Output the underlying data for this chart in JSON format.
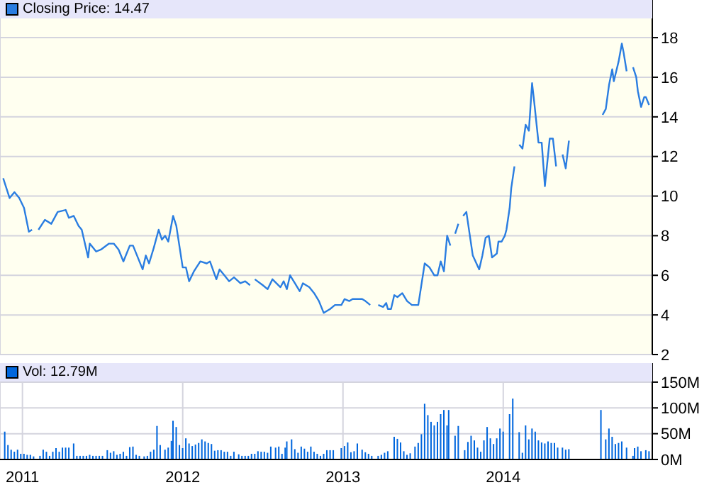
{
  "chart_data": [
    {
      "type": "line",
      "legend": "top left",
      "grid": true,
      "tick_labels": "y",
      "xlim": [
        2010.86,
        2014.93
      ],
      "xticks": [
        2011,
        2012,
        2013,
        2014
      ],
      "ylim": [
        2,
        19.9
      ],
      "yticks": [
        2,
        4,
        6,
        8,
        10,
        12,
        14,
        16,
        18
      ],
      "x": [
        2010.88,
        2010.92,
        2010.95,
        2010.98,
        2011.01,
        2011.04,
        2011.06,
        2011.08,
        2011.1,
        2011.14,
        2011.18,
        2011.22,
        2011.27,
        2011.29,
        2011.32,
        2011.35,
        2011.37,
        2011.41,
        2011.42,
        2011.46,
        2011.49,
        2011.54,
        2011.57,
        2011.6,
        2011.63,
        2011.67,
        2011.69,
        2011.72,
        2011.75,
        2011.77,
        2011.79,
        2011.82,
        2011.85,
        2011.87,
        2011.89,
        2011.91,
        2011.94,
        2011.96,
        2012.0,
        2012.02,
        2012.04,
        2012.07,
        2012.11,
        2012.15,
        2012.17,
        2012.21,
        2012.23,
        2012.26,
        2012.29,
        2012.32,
        2012.36,
        2012.39,
        2012.42,
        2012.43,
        2012.45,
        2012.5,
        2012.53,
        2012.56,
        2012.61,
        2012.63,
        2012.65,
        2012.67,
        2012.7,
        2012.73,
        2012.75,
        2012.79,
        2012.82,
        2012.85,
        2012.88,
        2012.92,
        2012.95,
        2012.99,
        2013.01,
        2013.04,
        2013.06,
        2013.12,
        2013.14,
        2013.17,
        2013.19,
        2013.22,
        2013.25,
        2013.27,
        2013.28,
        2013.3,
        2013.32,
        2013.34,
        2013.37,
        2013.4,
        2013.43,
        2013.47,
        2013.51,
        2013.54,
        2013.57,
        2013.59,
        2013.61,
        2013.63,
        2013.65,
        2013.67,
        2013.68,
        2013.7,
        2013.72,
        2013.73,
        2013.75,
        2013.77,
        2013.79,
        2013.81,
        2013.85,
        2013.87,
        2013.89,
        2013.91,
        2013.93,
        2013.96,
        2013.97,
        2013.99,
        2014.01,
        2014.02,
        2014.04,
        2014.05,
        2014.07,
        2014.08,
        2014.1,
        2014.12,
        2014.14,
        2014.16,
        2014.18,
        2014.19,
        2014.22,
        2014.24,
        2014.26,
        2014.29,
        2014.31,
        2014.33,
        2014.35,
        2014.37,
        2014.39,
        2014.41,
        2014.5,
        2014.62,
        2014.64,
        2014.66,
        2014.68,
        2014.69,
        2014.72,
        2014.74,
        2014.75,
        2014.77,
        2014.79,
        2014.81,
        2014.83,
        2014.84,
        2014.86,
        2014.88,
        2014.89,
        2014.91
      ],
      "series": [
        {
          "name": "Closing Price: 14.47",
          "color": "#2a7de1",
          "values": [
            10.9,
            9.9,
            10.2,
            9.9,
            9.4,
            8.2,
            8.3,
            null,
            8.3,
            8.8,
            8.6,
            9.2,
            9.3,
            8.9,
            9.0,
            8.5,
            8.3,
            6.9,
            7.6,
            7.2,
            7.3,
            7.6,
            7.6,
            7.3,
            6.7,
            7.5,
            7.5,
            6.9,
            6.3,
            7.0,
            6.6,
            7.4,
            8.3,
            7.8,
            8.0,
            7.7,
            9.0,
            8.5,
            6.4,
            6.4,
            5.7,
            6.2,
            6.7,
            6.6,
            6.7,
            5.8,
            6.3,
            6.0,
            5.7,
            5.9,
            5.6,
            5.7,
            5.5,
            null,
            5.8,
            5.5,
            5.3,
            5.8,
            5.4,
            5.7,
            5.3,
            6.0,
            5.6,
            5.2,
            5.6,
            5.4,
            5.1,
            4.7,
            4.1,
            4.3,
            4.5,
            4.5,
            4.8,
            4.7,
            4.8,
            4.8,
            4.7,
            4.5,
            null,
            4.5,
            4.4,
            4.6,
            4.3,
            4.3,
            5.0,
            4.9,
            5.1,
            4.7,
            4.5,
            4.5,
            6.6,
            6.4,
            6.0,
            6.0,
            6.7,
            6.2,
            8.0,
            7.5,
            null,
            8.1,
            8.6,
            null,
            9.0,
            9.2,
            8.1,
            7.0,
            6.3,
            7.0,
            7.9,
            8.0,
            6.9,
            7.1,
            7.7,
            7.7,
            8.0,
            8.3,
            9.4,
            10.4,
            11.5,
            null,
            12.6,
            12.4,
            13.6,
            13.3,
            15.7,
            15.0,
            12.7,
            12.7,
            10.5,
            12.9,
            12.9,
            11.5,
            null,
            12.1,
            11.4,
            12.8,
            null,
            14.1,
            14.4,
            15.6,
            16.4,
            15.8,
            16.8,
            17.7,
            17.3,
            16.3,
            null,
            16.5,
            16.0,
            15.3,
            14.5,
            15.0,
            15.0,
            14.6
          ]
        }
      ]
    },
    {
      "type": "bar",
      "legend": "top left",
      "grid": true,
      "xlim": [
        2010.86,
        2014.93
      ],
      "xticks": [
        2011,
        2012,
        2013,
        2014
      ],
      "ylim": [
        0,
        187
      ],
      "yticks": [
        {
          "value": 0,
          "label": "0M"
        },
        {
          "value": 50,
          "label": "50M"
        },
        {
          "value": 100,
          "label": "100M"
        },
        {
          "value": 150,
          "label": "150M"
        }
      ],
      "x": [
        2010.89,
        2010.91,
        2010.93,
        2010.95,
        2010.97,
        2010.99,
        2011.01,
        2011.03,
        2011.05,
        2011.07,
        2011.11,
        2011.13,
        2011.15,
        2011.17,
        2011.19,
        2011.21,
        2011.23,
        2011.25,
        2011.27,
        2011.29,
        2011.32,
        2011.34,
        2011.36,
        2011.38,
        2011.4,
        2011.42,
        2011.44,
        2011.46,
        2011.48,
        2011.5,
        2011.53,
        2011.55,
        2011.57,
        2011.59,
        2011.61,
        2011.63,
        2011.65,
        2011.67,
        2011.69,
        2011.71,
        2011.73,
        2011.76,
        2011.78,
        2011.8,
        2011.82,
        2011.84,
        2011.86,
        2011.89,
        2011.91,
        2011.93,
        2011.94,
        2011.96,
        2011.98,
        2012.0,
        2012.02,
        2012.04,
        2012.06,
        2012.08,
        2012.1,
        2012.12,
        2012.14,
        2012.16,
        2012.18,
        2012.2,
        2012.22,
        2012.24,
        2012.26,
        2012.28,
        2012.3,
        2012.32,
        2012.35,
        2012.37,
        2012.39,
        2012.41,
        2012.43,
        2012.45,
        2012.47,
        2012.49,
        2012.51,
        2012.53,
        2012.55,
        2012.58,
        2012.6,
        2012.62,
        2012.64,
        2012.65,
        2012.68,
        2012.7,
        2012.72,
        2012.74,
        2012.76,
        2012.78,
        2012.8,
        2012.82,
        2012.84,
        2012.86,
        2012.88,
        2012.9,
        2012.92,
        2012.94,
        2012.99,
        2013.01,
        2013.03,
        2013.05,
        2013.07,
        2013.09,
        2013.12,
        2013.14,
        2013.16,
        2013.18,
        2013.22,
        2013.24,
        2013.26,
        2013.28,
        2013.32,
        2013.34,
        2013.36,
        2013.38,
        2013.4,
        2013.42,
        2013.45,
        2013.47,
        2013.49,
        2013.51,
        2013.53,
        2013.55,
        2013.57,
        2013.59,
        2013.61,
        2013.63,
        2013.65,
        2013.66,
        2013.7,
        2013.72,
        2013.76,
        2013.78,
        2013.8,
        2013.82,
        2013.84,
        2013.86,
        2013.88,
        2013.9,
        2013.92,
        2013.94,
        2013.96,
        2013.98,
        2014.0,
        2014.04,
        2014.06,
        2014.1,
        2014.12,
        2014.14,
        2014.16,
        2014.18,
        2014.2,
        2014.22,
        2014.24,
        2014.26,
        2014.28,
        2014.3,
        2014.32,
        2014.34,
        2014.37,
        2014.39,
        2014.41,
        2014.61,
        2014.64,
        2014.66,
        2014.68,
        2014.7,
        2014.72,
        2014.74,
        2014.77,
        2014.81,
        2014.82,
        2014.84,
        2014.86,
        2014.89,
        2014.91
      ],
      "series": [
        {
          "name": "Vol: 12.79M",
          "color": "#0066dd",
          "values": [
            54,
            28,
            19,
            15,
            19,
            11,
            11,
            9,
            9,
            6,
            7,
            19,
            15,
            7,
            15,
            22,
            15,
            23,
            23,
            23,
            31,
            7,
            7,
            7,
            7,
            9,
            7,
            7,
            7,
            7,
            18,
            13,
            16,
            9,
            11,
            15,
            7,
            24,
            25,
            9,
            7,
            6,
            7,
            15,
            19,
            65,
            28,
            19,
            23,
            36,
            75,
            63,
            28,
            22,
            41,
            31,
            26,
            29,
            32,
            39,
            35,
            32,
            30,
            17,
            18,
            18,
            15,
            15,
            7,
            15,
            10,
            7,
            7,
            7,
            11,
            11,
            16,
            15,
            15,
            13,
            25,
            23,
            25,
            11,
            23,
            35,
            39,
            20,
            13,
            25,
            21,
            15,
            25,
            15,
            11,
            7,
            11,
            18,
            18,
            18,
            22,
            26,
            33,
            14,
            16,
            31,
            19,
            14,
            11,
            7,
            7,
            9,
            13,
            16,
            44,
            40,
            33,
            16,
            9,
            12,
            25,
            32,
            49,
            108,
            86,
            73,
            66,
            73,
            88,
            96,
            66,
            96,
            46,
            65,
            18,
            34,
            46,
            37,
            23,
            15,
            37,
            63,
            41,
            30,
            41,
            60,
            54,
            88,
            118,
            53,
            13,
            66,
            39,
            60,
            54,
            37,
            33,
            31,
            35,
            32,
            32,
            23,
            23,
            19,
            20,
            96,
            39,
            60,
            44,
            30,
            32,
            35,
            23,
            7,
            22,
            25,
            16,
            18,
            16
          ]
        }
      ]
    }
  ]
}
